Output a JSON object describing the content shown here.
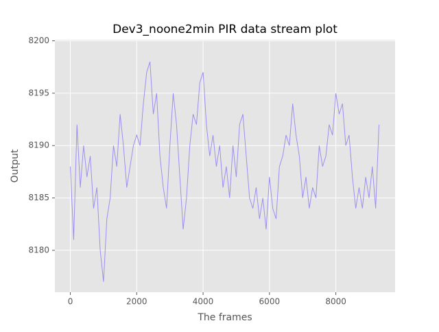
{
  "chart_data": {
    "type": "line",
    "title": "Dev3_noone2min PIR data stream plot",
    "x_label": "The frames",
    "y_label": "Output",
    "x": [
      0,
      100,
      200,
      300,
      400,
      500,
      600,
      700,
      800,
      900,
      1000,
      1100,
      1200,
      1300,
      1400,
      1500,
      1600,
      1700,
      1800,
      1900,
      2000,
      2100,
      2200,
      2300,
      2400,
      2500,
      2600,
      2700,
      2800,
      2900,
      3000,
      3100,
      3200,
      3300,
      3400,
      3500,
      3600,
      3700,
      3800,
      3900,
      4000,
      4100,
      4200,
      4300,
      4400,
      4500,
      4600,
      4700,
      4800,
      4900,
      5000,
      5100,
      5200,
      5300,
      5400,
      5500,
      5600,
      5700,
      5800,
      5900,
      6000,
      6100,
      6200,
      6300,
      6400,
      6500,
      6600,
      6700,
      6800,
      6900,
      7000,
      7100,
      7200,
      7300,
      7400,
      7500,
      7600,
      7700,
      7800,
      7900,
      8000,
      8100,
      8200,
      8300,
      8400,
      8500,
      8600,
      8700,
      8800,
      8900,
      9000,
      9100,
      9200,
      9300
    ],
    "series": [
      {
        "name": "PIR",
        "color": "#9b8ff0",
        "values": [
          8188,
          8181,
          8192,
          8186,
          8190,
          8187,
          8189,
          8184,
          8186,
          8180,
          8177,
          8183,
          8185,
          8190,
          8188,
          8193,
          8190,
          8186,
          8188,
          8190,
          8191,
          8190,
          8194,
          8197,
          8198,
          8193,
          8195,
          8189,
          8186,
          8184,
          8190,
          8195,
          8192,
          8187,
          8182,
          8185,
          8190,
          8193,
          8192,
          8196,
          8197,
          8192,
          8189,
          8191,
          8188,
          8190,
          8186,
          8188,
          8185,
          8190,
          8187,
          8192,
          8193,
          8189,
          8185,
          8184,
          8186,
          8183,
          8185,
          8182,
          8187,
          8184,
          8183,
          8188,
          8189,
          8191,
          8190,
          8194,
          8191,
          8189,
          8185,
          8187,
          8184,
          8186,
          8185,
          8190,
          8188,
          8189,
          8192,
          8191,
          8195,
          8193,
          8194,
          8190,
          8191,
          8187,
          8184,
          8186,
          8184,
          8187,
          8185,
          8188,
          8184,
          8192
        ]
      }
    ],
    "xlim": [
      -466,
      9786
    ],
    "ylim": [
      8176,
      8200.1
    ],
    "xticks": [
      0,
      2000,
      4000,
      6000,
      8000
    ],
    "yticks": [
      8180,
      8185,
      8190,
      8195,
      8200
    ],
    "grid": true
  }
}
